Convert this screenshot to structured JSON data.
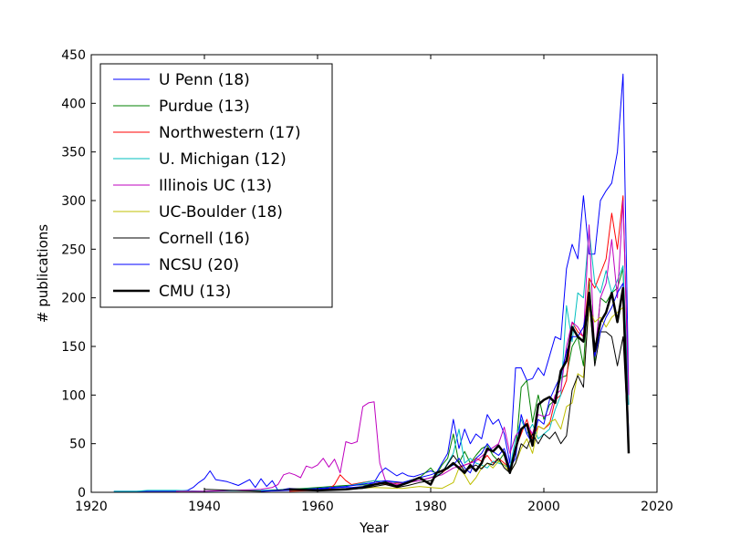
{
  "chart_data": {
    "type": "line",
    "xlabel": "Year",
    "ylabel": "# publications",
    "xlim": [
      1920,
      2020
    ],
    "ylim": [
      0,
      450
    ],
    "xticks": [
      "1920",
      "1940",
      "1960",
      "1980",
      "2000",
      "2020"
    ],
    "yticks": [
      "0",
      "50",
      "100",
      "150",
      "200",
      "250",
      "300",
      "350",
      "400",
      "450"
    ],
    "legend_position": "top-left",
    "grid": false,
    "series": [
      {
        "name": "U Penn (18)",
        "color": "#0000ff",
        "width": 1,
        "x": [
          1924,
          1930,
          1935,
          1937,
          1938,
          1939,
          1940,
          1941,
          1942,
          1944,
          1946,
          1948,
          1949,
          1950,
          1951,
          1952,
          1953,
          1955,
          1958,
          1960,
          1962,
          1964,
          1966,
          1968,
          1970,
          1971,
          1972,
          1973,
          1974,
          1975,
          1976,
          1977,
          1978,
          1979,
          1980,
          1981,
          1982,
          1983,
          1984,
          1985,
          1986,
          1987,
          1988,
          1989,
          1990,
          1991,
          1992,
          1993,
          1994,
          1995,
          1996,
          1997,
          1998,
          1999,
          2000,
          2001,
          2002,
          2003,
          2004,
          2005,
          2006,
          2007,
          2008,
          2009,
          2010,
          2011,
          2012,
          2013,
          2014,
          2015
        ],
        "y": [
          1,
          1,
          1,
          2,
          5,
          10,
          14,
          22,
          13,
          11,
          7,
          13,
          5,
          14,
          6,
          12,
          2,
          4,
          3,
          3,
          4,
          5,
          5,
          6,
          10,
          20,
          25,
          21,
          17,
          20,
          17,
          16,
          18,
          20,
          22,
          20,
          30,
          40,
          75,
          45,
          65,
          50,
          60,
          55,
          80,
          70,
          75,
          60,
          30,
          128,
          128,
          115,
          117,
          128,
          120,
          140,
          160,
          157,
          230,
          255,
          240,
          305,
          245,
          245,
          300,
          310,
          318,
          350,
          430,
          100
        ]
      },
      {
        "name": "Purdue (13)",
        "color": "#008000",
        "width": 1,
        "x": [
          1950,
          1955,
          1960,
          1965,
          1970,
          1975,
          1978,
          1979,
          1980,
          1981,
          1982,
          1983,
          1984,
          1985,
          1986,
          1987,
          1988,
          1989,
          1990,
          1991,
          1992,
          1993,
          1994,
          1995,
          1996,
          1997,
          1998,
          1999,
          2000,
          2001,
          2002,
          2003,
          2004,
          2005,
          2006,
          2007,
          2008,
          2009,
          2010,
          2011,
          2012,
          2013,
          2014,
          2015
        ],
        "y": [
          1,
          3,
          5,
          7,
          8,
          10,
          15,
          20,
          25,
          18,
          28,
          35,
          60,
          30,
          42,
          30,
          38,
          45,
          48,
          38,
          32,
          40,
          25,
          40,
          108,
          115,
          72,
          100,
          75,
          90,
          95,
          118,
          120,
          150,
          160,
          130,
          220,
          135,
          200,
          195,
          205,
          210,
          230,
          50
        ]
      },
      {
        "name": "Northwestern (17)",
        "color": "#ff0000",
        "width": 1,
        "x": [
          1955,
          1960,
          1962,
          1963,
          1964,
          1965,
          1966,
          1968,
          1970,
          1972,
          1975,
          1978,
          1980,
          1982,
          1984,
          1985,
          1986,
          1987,
          1988,
          1989,
          1990,
          1991,
          1992,
          1993,
          1994,
          1995,
          1996,
          1997,
          1998,
          1999,
          2000,
          2001,
          2002,
          2003,
          2004,
          2005,
          2006,
          2007,
          2008,
          2009,
          2010,
          2011,
          2012,
          2013,
          2014,
          2015
        ],
        "y": [
          1,
          2,
          3,
          8,
          18,
          12,
          8,
          10,
          12,
          8,
          10,
          12,
          15,
          20,
          30,
          25,
          28,
          30,
          35,
          32,
          38,
          30,
          35,
          30,
          25,
          45,
          60,
          75,
          55,
          68,
          65,
          70,
          95,
          100,
          115,
          175,
          165,
          160,
          220,
          210,
          225,
          240,
          287,
          250,
          305,
          90
        ]
      },
      {
        "name": "U. Michigan (12)",
        "color": "#00bfbf",
        "width": 1,
        "x": [
          1924,
          1928,
          1930,
          1935,
          1940,
          1950,
          1955,
          1960,
          1965,
          1970,
          1975,
          1978,
          1980,
          1982,
          1984,
          1985,
          1986,
          1987,
          1988,
          1989,
          1990,
          1991,
          1992,
          1993,
          1994,
          1995,
          1996,
          1997,
          1998,
          1999,
          2000,
          2001,
          2002,
          2003,
          2004,
          2005,
          2006,
          2007,
          2008,
          2009,
          2010,
          2011,
          2012,
          2013,
          2014,
          2015
        ],
        "y": [
          1,
          1,
          2,
          2,
          1,
          2,
          3,
          4,
          6,
          12,
          10,
          12,
          15,
          20,
          40,
          65,
          30,
          35,
          30,
          28,
          25,
          32,
          30,
          28,
          25,
          55,
          75,
          60,
          70,
          55,
          60,
          65,
          85,
          100,
          192,
          155,
          205,
          200,
          270,
          215,
          205,
          228,
          205,
          218,
          233,
          90
        ]
      },
      {
        "name": "Illinois UC (13)",
        "color": "#bf00bf",
        "width": 1,
        "x": [
          1935,
          1940,
          1945,
          1950,
          1952,
          1953,
          1954,
          1955,
          1956,
          1957,
          1958,
          1959,
          1960,
          1961,
          1962,
          1963,
          1964,
          1965,
          1966,
          1967,
          1968,
          1969,
          1970,
          1971,
          1972,
          1974,
          1976,
          1978,
          1980,
          1982,
          1984,
          1986,
          1988,
          1990,
          1992,
          1993,
          1994,
          1995,
          1996,
          1997,
          1998,
          1999,
          2000,
          2001,
          2002,
          2003,
          2004,
          2005,
          2006,
          2007,
          2008,
          2009,
          2010,
          2011,
          2012,
          2013,
          2014,
          2015
        ],
        "y": [
          1,
          1,
          2,
          3,
          5,
          8,
          18,
          20,
          18,
          15,
          27,
          25,
          28,
          35,
          26,
          34,
          20,
          52,
          50,
          52,
          88,
          92,
          93,
          30,
          12,
          8,
          10,
          12,
          15,
          18,
          25,
          28,
          32,
          42,
          50,
          67,
          40,
          58,
          65,
          70,
          60,
          80,
          78,
          80,
          100,
          105,
          150,
          175,
          170,
          160,
          275,
          140,
          200,
          215,
          260,
          200,
          300,
          100
        ]
      },
      {
        "name": "UC-Boulder (18)",
        "color": "#bfbf00",
        "width": 1,
        "x": [
          1950,
          1955,
          1960,
          1965,
          1970,
          1975,
          1978,
          1980,
          1982,
          1984,
          1985,
          1986,
          1987,
          1988,
          1989,
          1990,
          1991,
          1992,
          1993,
          1994,
          1995,
          1996,
          1997,
          1998,
          1999,
          2000,
          2001,
          2002,
          2003,
          2004,
          2005,
          2006,
          2007,
          2008,
          2009,
          2010,
          2011,
          2012,
          2013,
          2014,
          2015
        ],
        "y": [
          1,
          2,
          2,
          3,
          5,
          4,
          6,
          5,
          4,
          10,
          25,
          18,
          8,
          15,
          25,
          30,
          25,
          32,
          28,
          20,
          30,
          45,
          55,
          40,
          68,
          65,
          72,
          75,
          65,
          88,
          92,
          122,
          118,
          190,
          175,
          180,
          170,
          180,
          185,
          190,
          50
        ]
      },
      {
        "name": "Cornell (16)",
        "color": "#000000",
        "width": 1,
        "x": [
          1940,
          1945,
          1950,
          1955,
          1960,
          1965,
          1968,
          1970,
          1972,
          1974,
          1976,
          1978,
          1980,
          1982,
          1984,
          1985,
          1986,
          1987,
          1988,
          1989,
          1990,
          1991,
          1992,
          1993,
          1994,
          1995,
          1996,
          1997,
          1998,
          1999,
          2000,
          2001,
          2002,
          2003,
          2004,
          2005,
          2006,
          2007,
          2008,
          2009,
          2010,
          2011,
          2012,
          2013,
          2014,
          2015
        ],
        "y": [
          3,
          2,
          1,
          3,
          2,
          3,
          4,
          6,
          8,
          5,
          7,
          10,
          12,
          20,
          38,
          30,
          22,
          25,
          28,
          24,
          30,
          28,
          35,
          25,
          20,
          30,
          50,
          45,
          60,
          50,
          60,
          55,
          62,
          50,
          58,
          105,
          120,
          108,
          200,
          130,
          165,
          165,
          160,
          130,
          160,
          45
        ]
      },
      {
        "name": "NCSU (20)",
        "color": "#0000ff",
        "width": 1,
        "x": [
          1950,
          1955,
          1960,
          1965,
          1970,
          1972,
          1975,
          1978,
          1980,
          1982,
          1984,
          1985,
          1986,
          1987,
          1988,
          1989,
          1990,
          1991,
          1992,
          1993,
          1994,
          1995,
          1996,
          1997,
          1998,
          1999,
          2000,
          2001,
          2002,
          2003,
          2004,
          2005,
          2006,
          2007,
          2008,
          2009,
          2010,
          2011,
          2012,
          2013,
          2014,
          2015
        ],
        "y": [
          1,
          2,
          4,
          6,
          10,
          12,
          10,
          15,
          18,
          22,
          28,
          35,
          25,
          20,
          35,
          40,
          50,
          42,
          38,
          45,
          25,
          35,
          80,
          60,
          50,
          75,
          70,
          95,
          108,
          120,
          145,
          160,
          160,
          170,
          200,
          140,
          165,
          180,
          190,
          205,
          215,
          60
        ]
      },
      {
        "name": "CMU (13)",
        "color": "#000000",
        "width": 2.5,
        "x": [
          1955,
          1960,
          1965,
          1968,
          1970,
          1972,
          1974,
          1976,
          1978,
          1980,
          1981,
          1982,
          1983,
          1984,
          1985,
          1986,
          1987,
          1988,
          1989,
          1990,
          1991,
          1992,
          1993,
          1994,
          1995,
          1996,
          1997,
          1998,
          1999,
          2000,
          2001,
          2002,
          2003,
          2004,
          2005,
          2006,
          2007,
          2008,
          2009,
          2010,
          2011,
          2012,
          2013,
          2014,
          2015
        ],
        "y": [
          3,
          2,
          3,
          5,
          8,
          10,
          6,
          10,
          15,
          8,
          20,
          22,
          25,
          30,
          25,
          20,
          28,
          22,
          30,
          45,
          42,
          48,
          40,
          20,
          45,
          65,
          70,
          48,
          90,
          95,
          98,
          92,
          125,
          135,
          170,
          160,
          155,
          205,
          145,
          175,
          185,
          205,
          175,
          210,
          40
        ]
      }
    ]
  }
}
